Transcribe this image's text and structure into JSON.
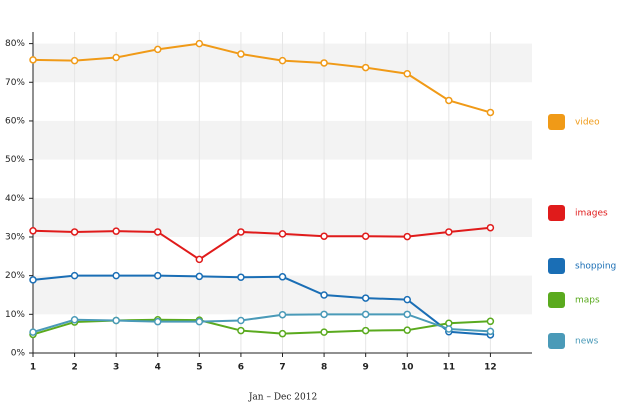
{
  "chart_data": {
    "type": "line",
    "x": [
      1,
      2,
      3,
      4,
      5,
      6,
      7,
      8,
      9,
      10,
      11,
      12
    ],
    "xlim": [
      1,
      13
    ],
    "xticks": [
      1,
      2,
      3,
      4,
      5,
      6,
      7,
      8,
      9,
      10,
      11,
      12
    ],
    "ylim": [
      0,
      83
    ],
    "yticks": [
      {
        "value": 0,
        "label": "0%"
      },
      {
        "value": 10,
        "label": "10%"
      },
      {
        "value": 20,
        "label": "20%"
      },
      {
        "value": 30,
        "label": "30%"
      },
      {
        "value": 40,
        "label": "40%"
      },
      {
        "value": 50,
        "label": "50%"
      },
      {
        "value": 60,
        "label": "60%"
      },
      {
        "value": 70,
        "label": "70%"
      },
      {
        "value": 80,
        "label": "80%"
      }
    ],
    "x_label": "Jan – Dec 2012",
    "grid": true,
    "legend": "right",
    "series": [
      {
        "name": "video",
        "color": "#f09a17",
        "values": [
          75.8,
          75.6,
          76.4,
          78.5,
          80,
          77.3,
          75.6,
          75,
          73.8,
          72.2,
          65.3,
          62.2
        ]
      },
      {
        "name": "images",
        "color": "#e01b1b",
        "values": [
          31.6,
          31.3,
          31.5,
          31.3,
          24.2,
          31.3,
          30.8,
          30.2,
          30.2,
          30.1,
          31.3,
          32.4
        ]
      },
      {
        "name": "shopping",
        "color": "#1a6eb5",
        "values": [
          18.9,
          20,
          20,
          20,
          19.8,
          19.6,
          19.7,
          15,
          14.2,
          13.8,
          5.5,
          4.7
        ]
      },
      {
        "name": "maps",
        "color": "#5aaa1e",
        "values": [
          4.8,
          8,
          8.4,
          8.6,
          8.5,
          5.8,
          5.0,
          5.4,
          5.8,
          5.9,
          7.7,
          8.2
        ]
      },
      {
        "name": "news",
        "color": "#4a9ab8",
        "values": [
          5.4,
          8.6,
          8.4,
          8.1,
          8.1,
          8.4,
          9.9,
          10,
          10,
          10,
          6.2,
          5.6
        ]
      }
    ]
  }
}
